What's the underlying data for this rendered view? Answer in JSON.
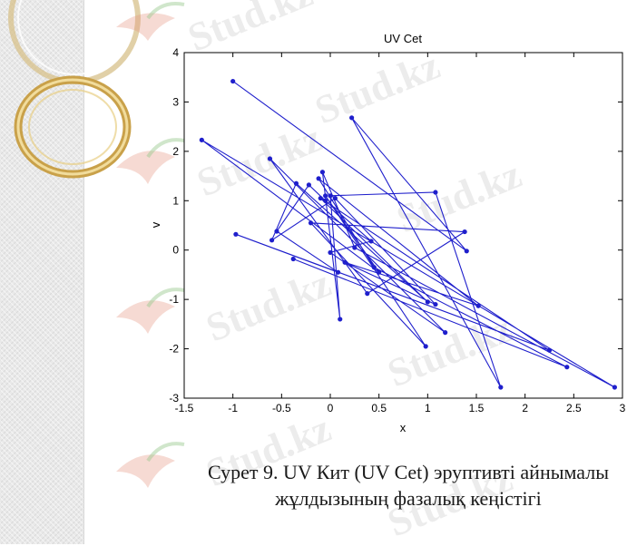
{
  "chart_data": {
    "type": "line",
    "title": "UV Cet",
    "xlabel": "x",
    "ylabel": "v",
    "xlim": [
      -1.5,
      3
    ],
    "ylim": [
      -3,
      4
    ],
    "xticks": [
      "-1.5",
      "-1",
      "-0.5",
      "0",
      "0.5",
      "1",
      "1.5",
      "2",
      "2.5",
      "3"
    ],
    "yticks": [
      "-3",
      "-2",
      "-1",
      "0",
      "1",
      "2",
      "3",
      "4"
    ],
    "grid": false,
    "legend": "none",
    "line_color": "#1f1fcc",
    "points": [
      [
        -1.0,
        3.42
      ],
      [
        1.4,
        -0.02
      ],
      [
        0.22,
        2.68
      ],
      [
        1.75,
        -2.78
      ],
      [
        1.08,
        1.17
      ],
      [
        0.0,
        1.1
      ],
      [
        0.1,
        -1.4
      ],
      [
        -0.08,
        1.58
      ],
      [
        0.25,
        0.05
      ],
      [
        2.92,
        -2.78
      ],
      [
        -1.32,
        2.23
      ],
      [
        0.5,
        -0.45
      ],
      [
        -0.05,
        1.1
      ],
      [
        0.98,
        -1.95
      ],
      [
        -0.2,
        0.55
      ],
      [
        1.38,
        0.37
      ],
      [
        0.38,
        -0.88
      ],
      [
        -0.62,
        1.85
      ],
      [
        1.18,
        -1.67
      ],
      [
        0.0,
        -0.05
      ],
      [
        0.42,
        0.18
      ],
      [
        -0.05,
        1.0
      ],
      [
        -0.22,
        1.32
      ],
      [
        -0.55,
        0.38
      ],
      [
        0.08,
        -0.45
      ],
      [
        -0.97,
        0.32
      ],
      [
        2.25,
        -2.03
      ],
      [
        -0.1,
        1.05
      ],
      [
        1.0,
        -1.05
      ],
      [
        -0.35,
        1.35
      ],
      [
        -0.6,
        0.2
      ],
      [
        0.05,
        1.05
      ],
      [
        1.08,
        -1.1
      ],
      [
        0.15,
        -0.25
      ],
      [
        1.52,
        -1.13
      ],
      [
        -0.12,
        1.45
      ],
      [
        0.45,
        -0.35
      ],
      [
        2.43,
        -2.37
      ],
      [
        -0.38,
        -0.18
      ]
    ]
  },
  "caption": {
    "line1": "Сурет 9. UV Кит (UV Cet) эруптивті айнымалы",
    "line2": "жұлдызының фазалық кеңістігі"
  },
  "watermark_text": "Stud.kz"
}
